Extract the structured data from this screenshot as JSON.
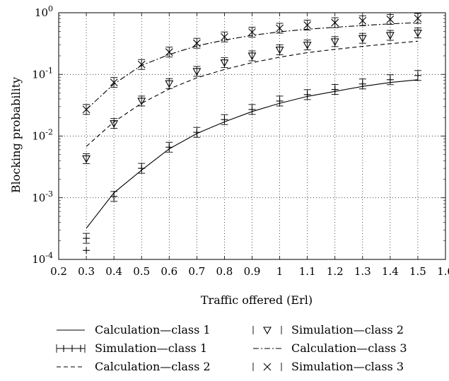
{
  "chart_data": {
    "type": "line",
    "xlabel": "Traffic offered (Erl)",
    "ylabel": "Blocking probability",
    "xlim": [
      0.2,
      1.6
    ],
    "ylim": [
      0.0001,
      1
    ],
    "yscale": "log",
    "grid": true,
    "legend_position": "bottom",
    "x_ticks": [
      "0.2",
      "0.3",
      "0.4",
      "0.5",
      "0.6",
      "0.7",
      "0.8",
      "0.9",
      "1",
      "1.1",
      "1.2",
      "1.3",
      "1.4",
      "1.5",
      "1.6"
    ],
    "y_ticks": [
      {
        "base": "10",
        "exp": "0"
      },
      {
        "base": "10",
        "exp": "-1"
      },
      {
        "base": "10",
        "exp": "-2"
      },
      {
        "base": "10",
        "exp": "-3"
      },
      {
        "base": "10",
        "exp": "-4"
      }
    ],
    "x": [
      0.3,
      0.4,
      0.5,
      0.6,
      0.7,
      0.8,
      0.9,
      1.0,
      1.1,
      1.2,
      1.3,
      1.4,
      1.5
    ],
    "series": [
      {
        "name": "Calculation—class 1",
        "style": "solid",
        "marker": "none",
        "values": [
          0.00032,
          0.0012,
          0.0028,
          0.0062,
          0.011,
          0.017,
          0.025,
          0.034,
          0.044,
          0.053,
          0.064,
          0.074,
          0.082
        ]
      },
      {
        "name": "Simulation—class 1",
        "style": "none",
        "marker": "plus",
        "values": [
          0.00022,
          0.00105,
          0.003,
          0.0066,
          0.0115,
          0.0185,
          0.027,
          0.037,
          0.047,
          0.057,
          0.07,
          0.082,
          0.096
        ],
        "extra_points": [
          {
            "x": 0.3,
            "y": 0.00014
          }
        ]
      },
      {
        "name": "Calculation—class 2",
        "style": "dashed",
        "marker": "none",
        "values": [
          0.0068,
          0.017,
          0.034,
          0.058,
          0.088,
          0.12,
          0.155,
          0.19,
          0.225,
          0.255,
          0.285,
          0.315,
          0.345
        ]
      },
      {
        "name": "Simulation—class 2",
        "style": "none",
        "marker": "triangle-down",
        "values": [
          0.0043,
          0.016,
          0.037,
          0.071,
          0.112,
          0.155,
          0.2,
          0.25,
          0.3,
          0.34,
          0.385,
          0.43,
          0.47
        ]
      },
      {
        "name": "Calculation—class 3",
        "style": "dashdot",
        "marker": "none",
        "values": [
          0.027,
          0.07,
          0.14,
          0.21,
          0.29,
          0.36,
          0.43,
          0.49,
          0.54,
          0.58,
          0.62,
          0.66,
          0.69
        ]
      },
      {
        "name": "Simulation—class 3",
        "style": "none",
        "marker": "x",
        "values": [
          0.027,
          0.074,
          0.145,
          0.23,
          0.32,
          0.405,
          0.485,
          0.56,
          0.63,
          0.69,
          0.74,
          0.78,
          0.81
        ]
      }
    ]
  }
}
